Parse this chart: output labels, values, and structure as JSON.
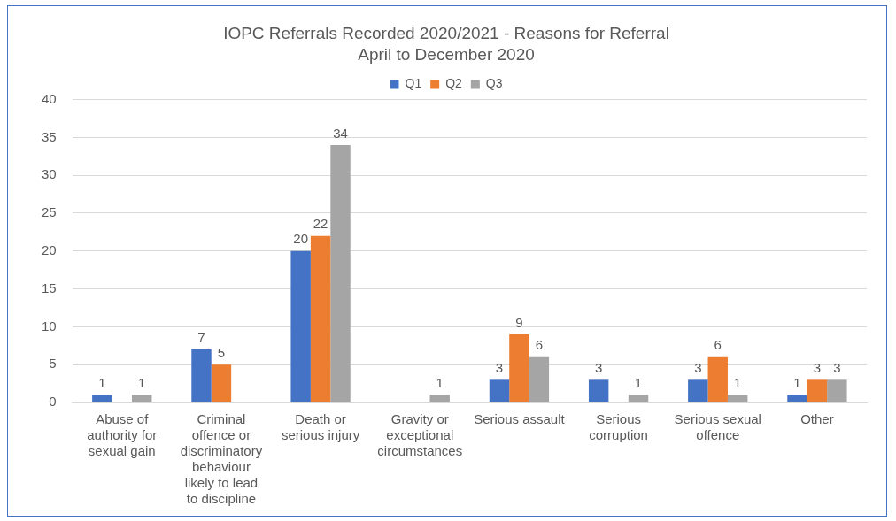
{
  "chart_data": {
    "type": "bar",
    "title": "IOPC Referrals Recorded 2020/2021 - Reasons for Referral",
    "subtitle": "April to December 2020",
    "categories": [
      "Abuse of authority for sexual gain",
      "Criminal offence or discriminatory behaviour likely to lead to discipline",
      "Death or serious injury",
      "Gravity or exceptional circumstances",
      "Serious assault",
      "Serious corruption",
      "Serious sexual offence",
      "Other"
    ],
    "series": [
      {
        "name": "Q1",
        "color": "#4472c4",
        "values": [
          1,
          7,
          20,
          null,
          3,
          3,
          3,
          1
        ]
      },
      {
        "name": "Q2",
        "color": "#ed7d31",
        "values": [
          null,
          5,
          22,
          null,
          9,
          null,
          6,
          3
        ]
      },
      {
        "name": "Q3",
        "color": "#a5a5a5",
        "values": [
          1,
          null,
          34,
          1,
          6,
          1,
          1,
          3
        ]
      }
    ],
    "ylim": [
      0,
      40
    ],
    "yticks": [
      0,
      5,
      10,
      15,
      20,
      25,
      30,
      35,
      40
    ],
    "grid": "y",
    "legend": "top",
    "data_labels": true
  }
}
